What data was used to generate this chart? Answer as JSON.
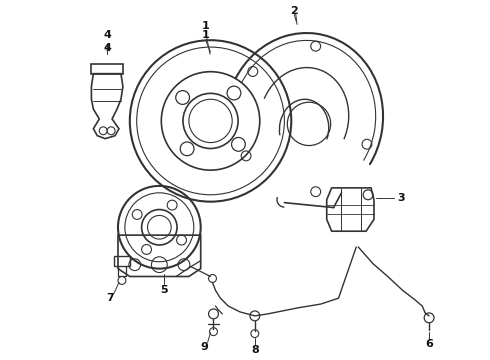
{
  "bg_color": "#f0f0f0",
  "line_color": "#555555",
  "dark_color": "#333333",
  "figsize": [
    4.9,
    3.6
  ],
  "dpi": 100,
  "label_fontsize": 8,
  "label_color": "#111111"
}
